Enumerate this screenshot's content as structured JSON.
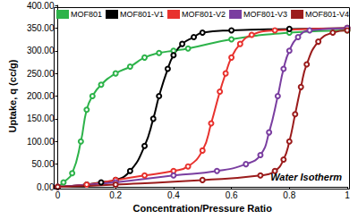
{
  "chart_data": {
    "type": "line",
    "annotation": "Water Isotherm",
    "x_label": "Concentration/Pressure Ratio",
    "y_label": "Uptake, q (cc/g)",
    "xlim": [
      0,
      1
    ],
    "xticks": [
      0,
      0.2,
      0.4,
      0.6,
      0.8,
      1
    ],
    "ylim": [
      0,
      400
    ],
    "yticks": [
      {
        "value": 0,
        "label": "0.00"
      },
      {
        "value": 50,
        "label": "50.00"
      },
      {
        "value": 100,
        "label": "100.00"
      },
      {
        "value": 150,
        "label": "150.00"
      },
      {
        "value": 200,
        "label": "200.00"
      },
      {
        "value": 250,
        "label": "250.00"
      },
      {
        "value": 300,
        "label": "300.00"
      },
      {
        "value": 350,
        "label": "350.00"
      },
      {
        "value": 400,
        "label": "400.00"
      }
    ],
    "grid": false,
    "legend": "top-left",
    "marker": "circle",
    "series": [
      {
        "name": "MOF801",
        "color": "#2db34a",
        "x": [
          0,
          0.02,
          0.05,
          0.08,
          0.1,
          0.12,
          0.15,
          0.2,
          0.25,
          0.3,
          0.35,
          0.4,
          0.45,
          0.6,
          0.8,
          1
        ],
        "values": [
          0,
          10,
          30,
          100,
          170,
          200,
          225,
          250,
          265,
          285,
          295,
          300,
          305,
          325,
          340,
          345
        ]
      },
      {
        "name": "MOF801-V1",
        "color": "#000000",
        "x": [
          0,
          0.1,
          0.15,
          0.2,
          0.25,
          0.3,
          0.33,
          0.35,
          0.38,
          0.4,
          0.43,
          0.47,
          0.5,
          0.6,
          0.8,
          1
        ],
        "values": [
          0,
          5,
          10,
          15,
          35,
          90,
          150,
          200,
          260,
          290,
          315,
          330,
          340,
          345,
          348,
          350
        ]
      },
      {
        "name": "MOF801-V2",
        "color": "#e8322e",
        "x": [
          0,
          0.1,
          0.2,
          0.3,
          0.4,
          0.45,
          0.5,
          0.53,
          0.56,
          0.58,
          0.6,
          0.63,
          0.67,
          0.75,
          1
        ],
        "values": [
          0,
          5,
          15,
          25,
          35,
          45,
          80,
          140,
          210,
          250,
          285,
          315,
          335,
          345,
          350
        ]
      },
      {
        "name": "MOF801-V3",
        "color": "#7a3ea0",
        "x": [
          0,
          0.2,
          0.4,
          0.55,
          0.65,
          0.7,
          0.73,
          0.76,
          0.78,
          0.8,
          0.83,
          0.87,
          1
        ],
        "values": [
          0,
          10,
          25,
          35,
          50,
          70,
          120,
          200,
          260,
          300,
          330,
          345,
          350
        ]
      },
      {
        "name": "MOF801-V4",
        "color": "#9b1c1c",
        "x": [
          0,
          0.2,
          0.5,
          0.7,
          0.75,
          0.78,
          0.8,
          0.82,
          0.84,
          0.86,
          0.9,
          0.95,
          1
        ],
        "values": [
          0,
          5,
          15,
          25,
          35,
          60,
          100,
          160,
          220,
          270,
          320,
          340,
          345
        ]
      }
    ]
  }
}
